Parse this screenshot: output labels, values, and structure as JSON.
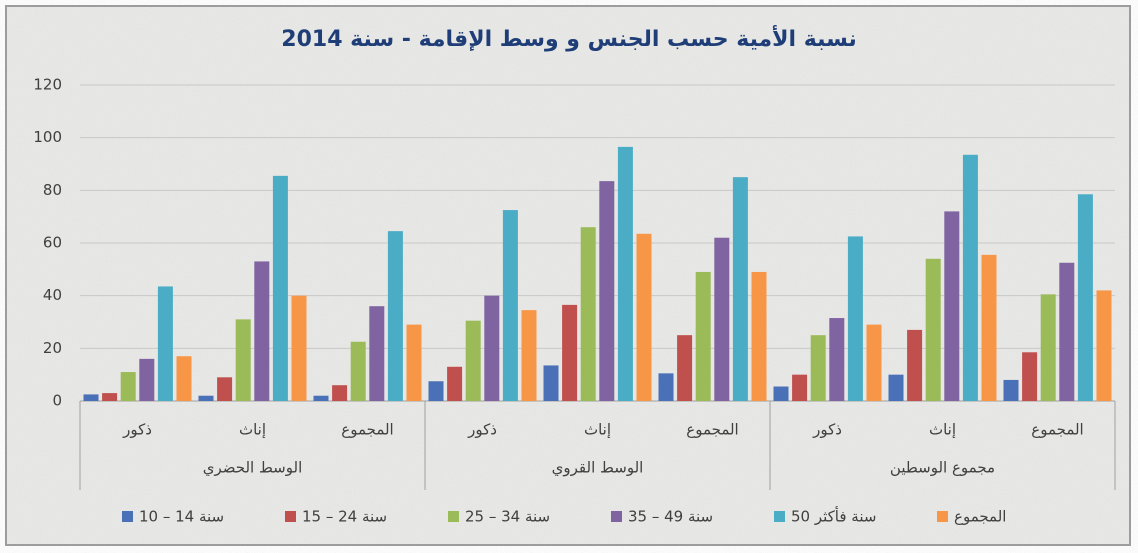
{
  "chart_data": {
    "type": "bar",
    "title": "نسبة الأمية حسب الجنس و وسط الإقامة - سنة 2014",
    "categories": [
      "ذكور",
      "إناث",
      "المجموع",
      "ذكور",
      "إناث",
      "المجموع",
      "ذكور",
      "إناث",
      "المجموع"
    ],
    "groups": [
      "الوسط الحضري",
      "الوسط القروي",
      "مجموع الوسطين"
    ],
    "series": [
      {
        "name": "10 – 14 سنة",
        "color": "#4a70b8",
        "values": [
          2.5,
          2,
          2,
          7.5,
          13.5,
          10.5,
          5.5,
          10,
          8
        ]
      },
      {
        "name": "15 – 24 سنة",
        "color": "#c0504d",
        "values": [
          3,
          9,
          6,
          13,
          36.5,
          25,
          10,
          27,
          18.5
        ]
      },
      {
        "name": "25 – 34 سنة",
        "color": "#9bbb59",
        "values": [
          11,
          31,
          22.5,
          30.5,
          66,
          49,
          25,
          54,
          40.5
        ]
      },
      {
        "name": "35 – 49 سنة",
        "color": "#8064a2",
        "values": [
          16,
          53,
          36,
          40,
          83.5,
          62,
          31.5,
          72,
          52.5
        ]
      },
      {
        "name": "50 سنة فأكثر",
        "color": "#4bacc6",
        "values": [
          43.5,
          85.5,
          64.5,
          72.5,
          96.5,
          85,
          62.5,
          93.5,
          78.5
        ]
      },
      {
        "name": "المجموع",
        "color": "#f79646",
        "values": [
          17,
          40,
          29,
          34.5,
          63.5,
          49,
          29,
          55.5,
          42
        ]
      }
    ],
    "ylim": [
      0,
      120
    ],
    "yticks": [
      0,
      20,
      40,
      60,
      80,
      100,
      120
    ],
    "grid": true
  }
}
